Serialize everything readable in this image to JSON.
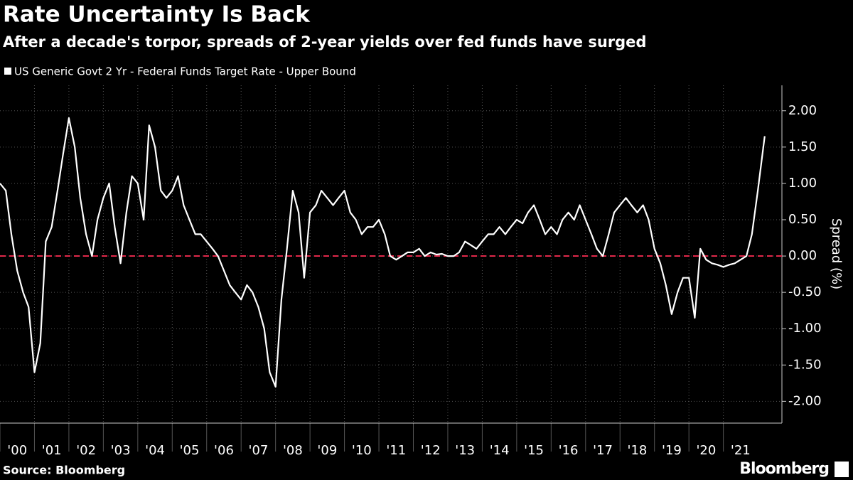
{
  "chart_data": {
    "type": "line",
    "title": "Rate Uncertainty Is Back",
    "subtitle": "After a decade's torpor, spreads of 2-year yields over fed funds have surged",
    "y_label": "Spread (%)",
    "source": "Source: Bloomberg",
    "brand": "Bloomberg",
    "reference_line": {
      "value": 0,
      "color": "#e0284a"
    },
    "grid": true,
    "x": [
      2000,
      2000.17,
      2000.33,
      2000.5,
      2000.67,
      2000.83,
      2001,
      2001.17,
      2001.33,
      2001.5,
      2001.67,
      2001.83,
      2002,
      2002.17,
      2002.33,
      2002.5,
      2002.67,
      2002.83,
      2003,
      2003.17,
      2003.33,
      2003.5,
      2003.67,
      2003.83,
      2004,
      2004.17,
      2004.33,
      2004.5,
      2004.67,
      2004.83,
      2005,
      2005.17,
      2005.33,
      2005.5,
      2005.67,
      2005.83,
      2006,
      2006.17,
      2006.33,
      2006.5,
      2006.67,
      2006.83,
      2007,
      2007.17,
      2007.33,
      2007.5,
      2007.67,
      2007.83,
      2008,
      2008.17,
      2008.33,
      2008.5,
      2008.67,
      2008.83,
      2009,
      2009.17,
      2009.33,
      2009.5,
      2009.67,
      2009.83,
      2010,
      2010.17,
      2010.33,
      2010.5,
      2010.67,
      2010.83,
      2011,
      2011.17,
      2011.33,
      2011.5,
      2011.67,
      2011.83,
      2012,
      2012.17,
      2012.33,
      2012.5,
      2012.67,
      2012.83,
      2013,
      2013.17,
      2013.33,
      2013.5,
      2013.67,
      2013.83,
      2014,
      2014.17,
      2014.33,
      2014.5,
      2014.67,
      2014.83,
      2015,
      2015.17,
      2015.33,
      2015.5,
      2015.67,
      2015.83,
      2016,
      2016.17,
      2016.33,
      2016.5,
      2016.67,
      2016.83,
      2017,
      2017.17,
      2017.33,
      2017.5,
      2017.67,
      2017.83,
      2018,
      2018.17,
      2018.33,
      2018.5,
      2018.67,
      2018.83,
      2019,
      2019.17,
      2019.33,
      2019.5,
      2019.67,
      2019.83,
      2020,
      2020.17,
      2020.33,
      2020.5,
      2020.67,
      2020.83,
      2021,
      2021.17,
      2021.33,
      2021.5,
      2021.67,
      2021.83,
      2022,
      2022.2
    ],
    "series": [
      {
        "name": "US Generic Govt 2 Yr - Federal Funds Target Rate - Upper Bound",
        "color": "#ffffff",
        "values": [
          1.0,
          0.9,
          0.3,
          -0.2,
          -0.5,
          -0.7,
          -1.6,
          -1.2,
          0.2,
          0.4,
          0.9,
          1.4,
          1.9,
          1.5,
          0.8,
          0.3,
          0.0,
          0.5,
          0.8,
          1.0,
          0.4,
          -0.1,
          0.6,
          1.1,
          1.0,
          0.5,
          1.8,
          1.5,
          0.9,
          0.8,
          0.9,
          1.1,
          0.7,
          0.5,
          0.3,
          0.3,
          0.2,
          0.1,
          0.0,
          -0.2,
          -0.4,
          -0.5,
          -0.6,
          -0.4,
          -0.5,
          -0.7,
          -1.0,
          -1.6,
          -1.8,
          -0.6,
          0.1,
          0.9,
          0.6,
          -0.3,
          0.6,
          0.7,
          0.9,
          0.8,
          0.7,
          0.8,
          0.9,
          0.6,
          0.5,
          0.3,
          0.4,
          0.4,
          0.5,
          0.3,
          0.0,
          -0.05,
          0.0,
          0.05,
          0.05,
          0.1,
          0.0,
          0.05,
          0.02,
          0.03,
          0.0,
          0.0,
          0.05,
          0.2,
          0.15,
          0.1,
          0.2,
          0.3,
          0.3,
          0.4,
          0.3,
          0.4,
          0.5,
          0.45,
          0.6,
          0.7,
          0.5,
          0.3,
          0.4,
          0.3,
          0.5,
          0.6,
          0.5,
          0.7,
          0.5,
          0.3,
          0.1,
          0.0,
          0.3,
          0.6,
          0.7,
          0.8,
          0.7,
          0.6,
          0.7,
          0.5,
          0.1,
          -0.1,
          -0.4,
          -0.8,
          -0.5,
          -0.3,
          -0.3,
          -0.85,
          0.1,
          -0.05,
          -0.1,
          -0.12,
          -0.15,
          -0.12,
          -0.1,
          -0.05,
          0.0,
          0.3,
          0.9,
          1.65
        ]
      }
    ],
    "xlim": [
      2000,
      2022.7
    ],
    "xticks": [
      {
        "value": 2000,
        "label": "'00"
      },
      {
        "value": 2001,
        "label": "'01"
      },
      {
        "value": 2002,
        "label": "'02"
      },
      {
        "value": 2003,
        "label": "'03"
      },
      {
        "value": 2004,
        "label": "'04"
      },
      {
        "value": 2005,
        "label": "'05"
      },
      {
        "value": 2006,
        "label": "'06"
      },
      {
        "value": 2007,
        "label": "'07"
      },
      {
        "value": 2008,
        "label": "'08"
      },
      {
        "value": 2009,
        "label": "'09"
      },
      {
        "value": 2010,
        "label": "'10"
      },
      {
        "value": 2011,
        "label": "'11"
      },
      {
        "value": 2012,
        "label": "'12"
      },
      {
        "value": 2013,
        "label": "'13"
      },
      {
        "value": 2014,
        "label": "'14"
      },
      {
        "value": 2015,
        "label": "'15"
      },
      {
        "value": 2016,
        "label": "'16"
      },
      {
        "value": 2017,
        "label": "'17"
      },
      {
        "value": 2018,
        "label": "'18"
      },
      {
        "value": 2019,
        "label": "'19"
      },
      {
        "value": 2020,
        "label": "'20"
      },
      {
        "value": 2021,
        "label": "'21"
      }
    ],
    "ylim": [
      -2.3,
      2.35
    ],
    "yticks": [
      {
        "value": -2,
        "label": "-2.00"
      },
      {
        "value": -1.5,
        "label": "-1.50"
      },
      {
        "value": -1,
        "label": "-1.00"
      },
      {
        "value": -0.5,
        "label": "-0.50"
      },
      {
        "value": 0,
        "label": "0.00"
      },
      {
        "value": 0.5,
        "label": "0.50"
      },
      {
        "value": 1,
        "label": "1.00"
      },
      {
        "value": 1.5,
        "label": "1.50"
      },
      {
        "value": 2,
        "label": "2.00"
      }
    ]
  }
}
